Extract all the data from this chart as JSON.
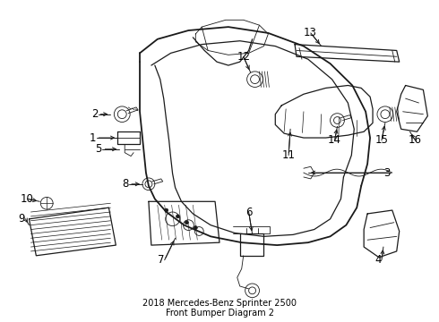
{
  "title": "2018 Mercedes-Benz Sprinter 2500\nFront Bumper Diagram 2",
  "background_color": "#ffffff",
  "line_color": "#1a1a1a",
  "label_color": "#000000",
  "fig_width": 4.9,
  "fig_height": 3.6,
  "dpi": 100,
  "font_size_labels": 8.5,
  "font_size_title": 7.0
}
